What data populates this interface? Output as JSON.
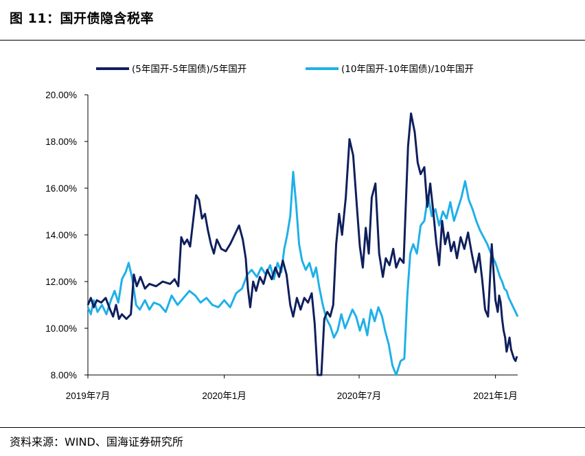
{
  "figure": {
    "title": "图 11：国开债隐含税率",
    "source": "资料来源：WIND、国海证券研究所"
  },
  "chart_data": {
    "type": "line",
    "x_tick_labels": [
      "2019年7月",
      "2020年1月",
      "2020年7月",
      "2021年1月"
    ],
    "x_ticks": [
      "2019-07-01",
      "2020-01-01",
      "2020-07-01",
      "2021-01-01"
    ],
    "x_range": [
      "2019-07-01",
      "2021-01-31"
    ],
    "y_tick_labels": [
      "8.00%",
      "10.00%",
      "12.00%",
      "14.00%",
      "16.00%",
      "18.00%",
      "20.00%"
    ],
    "ylim": [
      8,
      20
    ],
    "y_unit": "%",
    "grid": false,
    "legend_position": "top",
    "series": [
      {
        "name": "(5年国开-5年国债)/5年国开",
        "color": "#0f1f5c",
        "points": [
          [
            "2019-07-01",
            11.0
          ],
          [
            "2019-07-05",
            11.3
          ],
          [
            "2019-07-09",
            10.9
          ],
          [
            "2019-07-13",
            11.2
          ],
          [
            "2019-07-19",
            11.1
          ],
          [
            "2019-07-25",
            11.3
          ],
          [
            "2019-07-31",
            10.8
          ],
          [
            "2019-08-04",
            10.5
          ],
          [
            "2019-08-08",
            11.0
          ],
          [
            "2019-08-12",
            10.4
          ],
          [
            "2019-08-16",
            10.6
          ],
          [
            "2019-08-22",
            10.4
          ],
          [
            "2019-08-28",
            10.6
          ],
          [
            "2019-09-01",
            12.3
          ],
          [
            "2019-09-05",
            11.8
          ],
          [
            "2019-09-10",
            12.2
          ],
          [
            "2019-09-16",
            11.7
          ],
          [
            "2019-09-22",
            11.9
          ],
          [
            "2019-10-01",
            11.8
          ],
          [
            "2019-10-10",
            12.0
          ],
          [
            "2019-10-20",
            11.9
          ],
          [
            "2019-10-26",
            12.1
          ],
          [
            "2019-10-31",
            11.8
          ],
          [
            "2019-11-04",
            13.9
          ],
          [
            "2019-11-08",
            13.6
          ],
          [
            "2019-11-12",
            13.8
          ],
          [
            "2019-11-16",
            13.5
          ],
          [
            "2019-11-20",
            14.6
          ],
          [
            "2019-11-24",
            15.7
          ],
          [
            "2019-11-28",
            15.5
          ],
          [
            "2019-12-02",
            14.7
          ],
          [
            "2019-12-06",
            14.9
          ],
          [
            "2019-12-10",
            14.2
          ],
          [
            "2019-12-14",
            13.6
          ],
          [
            "2019-12-18",
            13.2
          ],
          [
            "2019-12-22",
            13.8
          ],
          [
            "2019-12-28",
            13.4
          ],
          [
            "2020-01-03",
            13.3
          ],
          [
            "2020-01-09",
            13.6
          ],
          [
            "2020-01-15",
            14.0
          ],
          [
            "2020-01-21",
            14.4
          ],
          [
            "2020-01-26",
            13.8
          ],
          [
            "2020-01-30",
            13.0
          ],
          [
            "2020-02-02",
            11.7
          ],
          [
            "2020-02-05",
            10.9
          ],
          [
            "2020-02-09",
            12.0
          ],
          [
            "2020-02-13",
            11.6
          ],
          [
            "2020-02-18",
            12.2
          ],
          [
            "2020-02-23",
            11.9
          ],
          [
            "2020-02-28",
            12.5
          ],
          [
            "2020-03-05",
            12.1
          ],
          [
            "2020-03-10",
            12.6
          ],
          [
            "2020-03-15",
            12.2
          ],
          [
            "2020-03-20",
            12.9
          ],
          [
            "2020-03-25",
            12.3
          ],
          [
            "2020-03-30",
            11.0
          ],
          [
            "2020-04-03",
            10.5
          ],
          [
            "2020-04-08",
            11.3
          ],
          [
            "2020-04-13",
            10.8
          ],
          [
            "2020-04-18",
            11.3
          ],
          [
            "2020-04-23",
            11.1
          ],
          [
            "2020-04-28",
            11.5
          ],
          [
            "2020-05-02",
            10.2
          ],
          [
            "2020-05-06",
            8.0
          ],
          [
            "2020-05-11",
            8.0
          ],
          [
            "2020-05-15",
            10.4
          ],
          [
            "2020-05-19",
            10.7
          ],
          [
            "2020-05-23",
            10.5
          ],
          [
            "2020-05-27",
            11.0
          ],
          [
            "2020-05-31",
            13.6
          ],
          [
            "2020-06-04",
            14.9
          ],
          [
            "2020-06-08",
            14.0
          ],
          [
            "2020-06-13",
            15.6
          ],
          [
            "2020-06-18",
            18.1
          ],
          [
            "2020-06-23",
            17.4
          ],
          [
            "2020-06-28",
            15.2
          ],
          [
            "2020-07-02",
            13.5
          ],
          [
            "2020-07-06",
            12.6
          ],
          [
            "2020-07-10",
            14.3
          ],
          [
            "2020-07-14",
            13.2
          ],
          [
            "2020-07-18",
            15.6
          ],
          [
            "2020-07-23",
            16.2
          ],
          [
            "2020-07-28",
            13.2
          ],
          [
            "2020-08-02",
            12.2
          ],
          [
            "2020-08-06",
            13.0
          ],
          [
            "2020-08-11",
            12.7
          ],
          [
            "2020-08-16",
            13.4
          ],
          [
            "2020-08-20",
            12.6
          ],
          [
            "2020-08-25",
            13.0
          ],
          [
            "2020-08-30",
            12.8
          ],
          [
            "2020-09-05",
            17.8
          ],
          [
            "2020-09-09",
            19.2
          ],
          [
            "2020-09-14",
            18.4
          ],
          [
            "2020-09-18",
            17.1
          ],
          [
            "2020-09-22",
            16.6
          ],
          [
            "2020-09-27",
            16.9
          ],
          [
            "2020-10-01",
            15.2
          ],
          [
            "2020-10-05",
            16.2
          ],
          [
            "2020-10-09",
            15.0
          ],
          [
            "2020-10-13",
            13.7
          ],
          [
            "2020-10-17",
            12.7
          ],
          [
            "2020-10-21",
            14.6
          ],
          [
            "2020-10-25",
            13.6
          ],
          [
            "2020-10-29",
            14.1
          ],
          [
            "2020-11-02",
            13.3
          ],
          [
            "2020-11-06",
            13.7
          ],
          [
            "2020-11-10",
            13.0
          ],
          [
            "2020-11-15",
            13.9
          ],
          [
            "2020-11-20",
            13.4
          ],
          [
            "2020-11-25",
            14.1
          ],
          [
            "2020-11-30",
            13.2
          ],
          [
            "2020-12-05",
            12.4
          ],
          [
            "2020-12-10",
            13.2
          ],
          [
            "2020-12-14",
            12.1
          ],
          [
            "2020-12-18",
            10.8
          ],
          [
            "2020-12-22",
            10.5
          ],
          [
            "2020-12-27",
            13.6
          ],
          [
            "2021-01-01",
            11.2
          ],
          [
            "2021-01-04",
            10.7
          ],
          [
            "2021-01-06",
            11.4
          ],
          [
            "2021-01-08",
            11.1
          ],
          [
            "2021-01-10",
            10.4
          ],
          [
            "2021-01-12",
            9.9
          ],
          [
            "2021-01-14",
            9.6
          ],
          [
            "2021-01-16",
            9.0
          ],
          [
            "2021-01-18",
            9.3
          ],
          [
            "2021-01-20",
            9.6
          ],
          [
            "2021-01-22",
            9.1
          ],
          [
            "2021-01-24",
            8.9
          ],
          [
            "2021-01-26",
            8.7
          ],
          [
            "2021-01-28",
            8.6
          ],
          [
            "2021-01-30",
            8.8
          ]
        ]
      },
      {
        "name": "(10年国开-10年国债)/10年国开",
        "color": "#1fb0e8",
        "points": [
          [
            "2019-07-01",
            10.9
          ],
          [
            "2019-07-05",
            10.6
          ],
          [
            "2019-07-09",
            11.2
          ],
          [
            "2019-07-14",
            10.7
          ],
          [
            "2019-07-20",
            11.0
          ],
          [
            "2019-07-26",
            10.6
          ],
          [
            "2019-08-01",
            11.2
          ],
          [
            "2019-08-06",
            11.6
          ],
          [
            "2019-08-11",
            11.1
          ],
          [
            "2019-08-16",
            12.1
          ],
          [
            "2019-08-21",
            12.4
          ],
          [
            "2019-08-25",
            12.8
          ],
          [
            "2019-08-30",
            12.1
          ],
          [
            "2019-09-04",
            11.0
          ],
          [
            "2019-09-09",
            10.8
          ],
          [
            "2019-09-16",
            11.2
          ],
          [
            "2019-09-22",
            10.8
          ],
          [
            "2019-09-28",
            11.1
          ],
          [
            "2019-10-06",
            11.0
          ],
          [
            "2019-10-14",
            10.7
          ],
          [
            "2019-10-22",
            11.4
          ],
          [
            "2019-10-30",
            11.0
          ],
          [
            "2019-11-07",
            11.3
          ],
          [
            "2019-11-15",
            11.6
          ],
          [
            "2019-11-23",
            11.4
          ],
          [
            "2019-11-30",
            11.1
          ],
          [
            "2019-12-08",
            11.3
          ],
          [
            "2019-12-16",
            11.0
          ],
          [
            "2019-12-24",
            10.9
          ],
          [
            "2020-01-01",
            11.2
          ],
          [
            "2020-01-09",
            10.9
          ],
          [
            "2020-01-17",
            11.5
          ],
          [
            "2020-01-25",
            11.7
          ],
          [
            "2020-02-01",
            12.3
          ],
          [
            "2020-02-07",
            12.5
          ],
          [
            "2020-02-14",
            12.2
          ],
          [
            "2020-02-20",
            12.6
          ],
          [
            "2020-02-26",
            12.3
          ],
          [
            "2020-03-03",
            12.7
          ],
          [
            "2020-03-08",
            12.1
          ],
          [
            "2020-03-13",
            12.8
          ],
          [
            "2020-03-18",
            12.4
          ],
          [
            "2020-03-22",
            13.4
          ],
          [
            "2020-03-26",
            14.0
          ],
          [
            "2020-03-30",
            14.8
          ],
          [
            "2020-04-03",
            16.7
          ],
          [
            "2020-04-07",
            15.3
          ],
          [
            "2020-04-11",
            13.6
          ],
          [
            "2020-04-15",
            12.9
          ],
          [
            "2020-04-20",
            12.5
          ],
          [
            "2020-04-25",
            12.8
          ],
          [
            "2020-04-30",
            12.2
          ],
          [
            "2020-05-04",
            12.6
          ],
          [
            "2020-05-08",
            11.8
          ],
          [
            "2020-05-13",
            11.0
          ],
          [
            "2020-05-18",
            10.4
          ],
          [
            "2020-05-23",
            10.1
          ],
          [
            "2020-05-28",
            9.6
          ],
          [
            "2020-06-02",
            9.9
          ],
          [
            "2020-06-07",
            10.6
          ],
          [
            "2020-06-12",
            10.0
          ],
          [
            "2020-06-17",
            10.4
          ],
          [
            "2020-06-22",
            10.8
          ],
          [
            "2020-06-27",
            10.5
          ],
          [
            "2020-07-02",
            9.9
          ],
          [
            "2020-07-07",
            10.4
          ],
          [
            "2020-07-12",
            9.7
          ],
          [
            "2020-07-17",
            10.8
          ],
          [
            "2020-07-22",
            10.3
          ],
          [
            "2020-07-27",
            10.9
          ],
          [
            "2020-08-01",
            10.5
          ],
          [
            "2020-08-05",
            9.9
          ],
          [
            "2020-08-10",
            9.3
          ],
          [
            "2020-08-15",
            8.4
          ],
          [
            "2020-08-20",
            8.0
          ],
          [
            "2020-08-26",
            8.6
          ],
          [
            "2020-08-31",
            8.7
          ],
          [
            "2020-09-04",
            11.4
          ],
          [
            "2020-09-08",
            13.2
          ],
          [
            "2020-09-12",
            13.6
          ],
          [
            "2020-09-17",
            13.2
          ],
          [
            "2020-09-22",
            14.4
          ],
          [
            "2020-09-27",
            14.6
          ],
          [
            "2020-10-02",
            15.7
          ],
          [
            "2020-10-07",
            14.8
          ],
          [
            "2020-10-12",
            15.1
          ],
          [
            "2020-10-17",
            14.4
          ],
          [
            "2020-10-22",
            15.0
          ],
          [
            "2020-10-27",
            14.7
          ],
          [
            "2020-11-01",
            15.4
          ],
          [
            "2020-11-06",
            14.6
          ],
          [
            "2020-11-11",
            15.1
          ],
          [
            "2020-11-16",
            15.6
          ],
          [
            "2020-11-21",
            16.3
          ],
          [
            "2020-11-26",
            15.5
          ],
          [
            "2020-12-01",
            15.1
          ],
          [
            "2020-12-06",
            14.6
          ],
          [
            "2020-12-11",
            14.2
          ],
          [
            "2020-12-16",
            13.9
          ],
          [
            "2020-12-21",
            13.6
          ],
          [
            "2020-12-26",
            13.2
          ],
          [
            "2021-01-01",
            12.8
          ],
          [
            "2021-01-04",
            12.5
          ],
          [
            "2021-01-07",
            12.2
          ],
          [
            "2021-01-10",
            12.0
          ],
          [
            "2021-01-13",
            11.7
          ],
          [
            "2021-01-16",
            11.6
          ],
          [
            "2021-01-19",
            11.3
          ],
          [
            "2021-01-22",
            11.1
          ],
          [
            "2021-01-25",
            10.9
          ],
          [
            "2021-01-28",
            10.7
          ],
          [
            "2021-01-31",
            10.5
          ]
        ]
      }
    ]
  }
}
